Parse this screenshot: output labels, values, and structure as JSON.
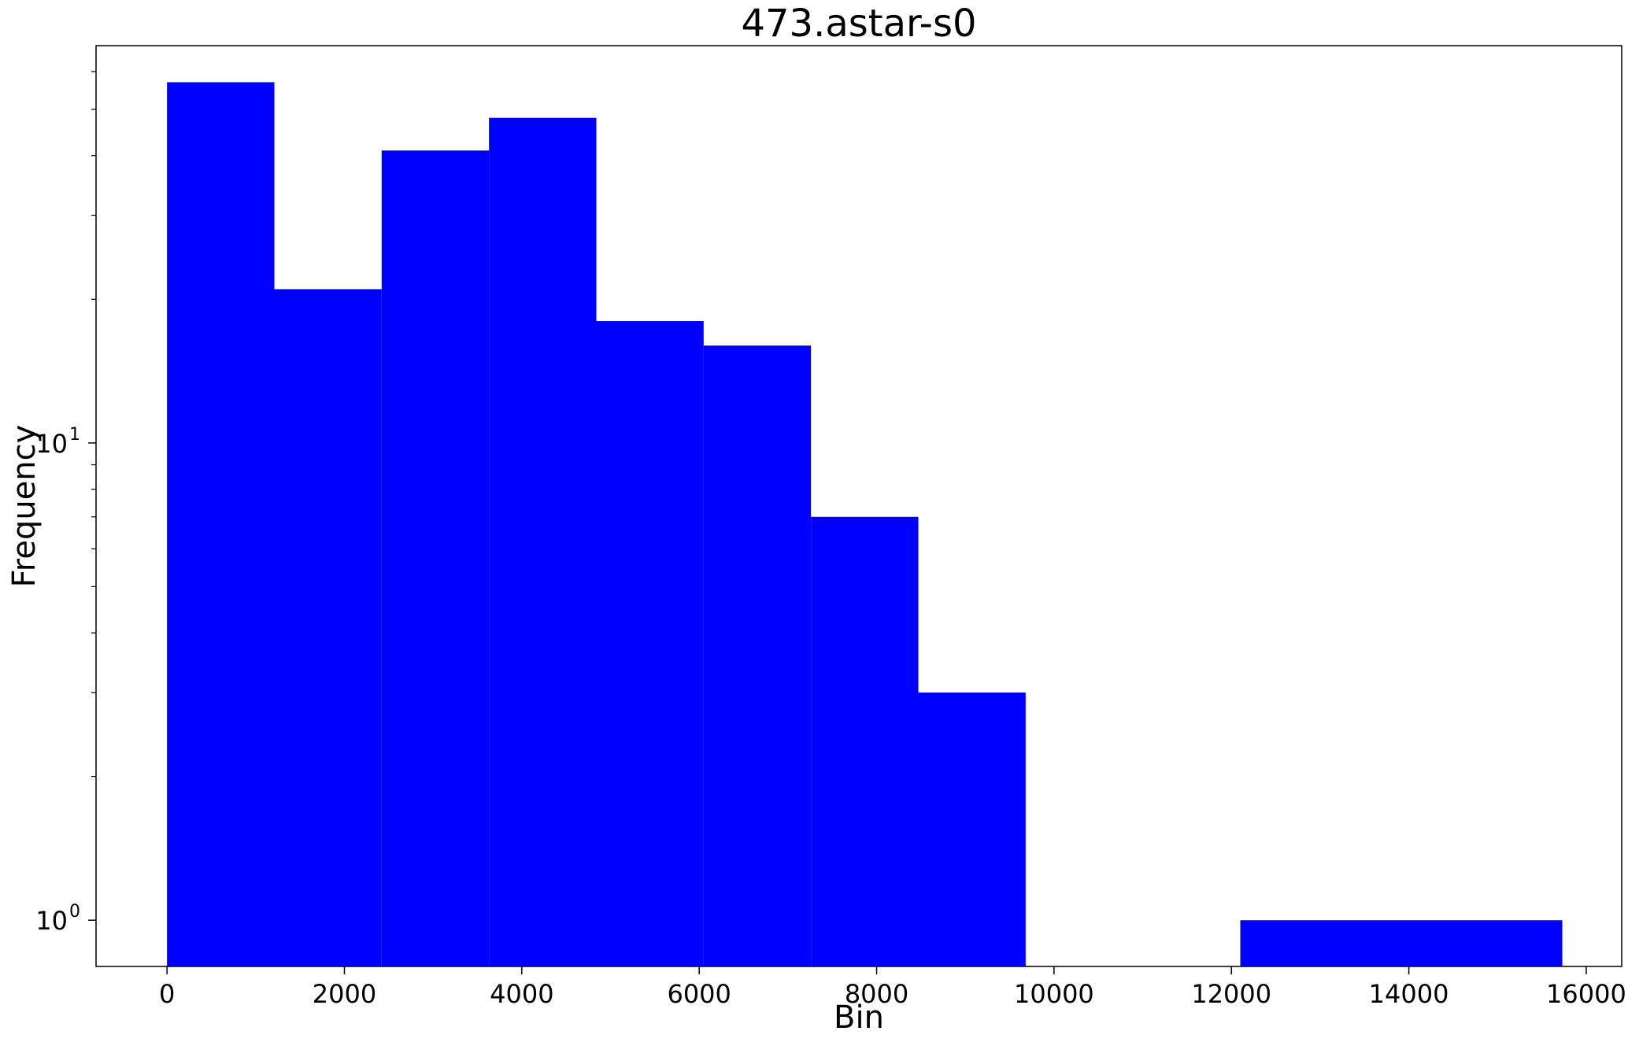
{
  "chart_data": {
    "type": "bar",
    "title": "473.astar-s0",
    "xlabel": "Bin",
    "ylabel": "Frequency",
    "y_scale": "log",
    "xlim": [
      -800,
      16400
    ],
    "ylim": [
      0.8,
      68
    ],
    "bar_color": "#0000ff",
    "grid": false,
    "legend": "none",
    "bins": [
      {
        "x0": 0,
        "x1": 1210,
        "count": 57
      },
      {
        "x0": 1210,
        "x1": 2420,
        "count": 21
      },
      {
        "x0": 2420,
        "x1": 3630,
        "count": 41
      },
      {
        "x0": 3630,
        "x1": 4840,
        "count": 48
      },
      {
        "x0": 4840,
        "x1": 6050,
        "count": 18
      },
      {
        "x0": 6050,
        "x1": 7260,
        "count": 16
      },
      {
        "x0": 7260,
        "x1": 8470,
        "count": 7
      },
      {
        "x0": 8470,
        "x1": 9680,
        "count": 3
      },
      {
        "x0": 12100,
        "x1": 15730,
        "count": 1
      }
    ],
    "x_ticks": [
      {
        "value": 0,
        "label": "0"
      },
      {
        "value": 2000,
        "label": "2000"
      },
      {
        "value": 4000,
        "label": "4000"
      },
      {
        "value": 6000,
        "label": "6000"
      },
      {
        "value": 8000,
        "label": "8000"
      },
      {
        "value": 10000,
        "label": "10000"
      },
      {
        "value": 12000,
        "label": "12000"
      },
      {
        "value": 14000,
        "label": "14000"
      },
      {
        "value": 16000,
        "label": "16000"
      }
    ],
    "y_major_ticks": [
      {
        "value": 1,
        "base": "10",
        "exp": "0"
      },
      {
        "value": 10,
        "base": "10",
        "exp": "1"
      }
    ],
    "y_minor_ticks": [
      2,
      3,
      4,
      5,
      6,
      7,
      8,
      9,
      20,
      30,
      40,
      50,
      60
    ]
  }
}
